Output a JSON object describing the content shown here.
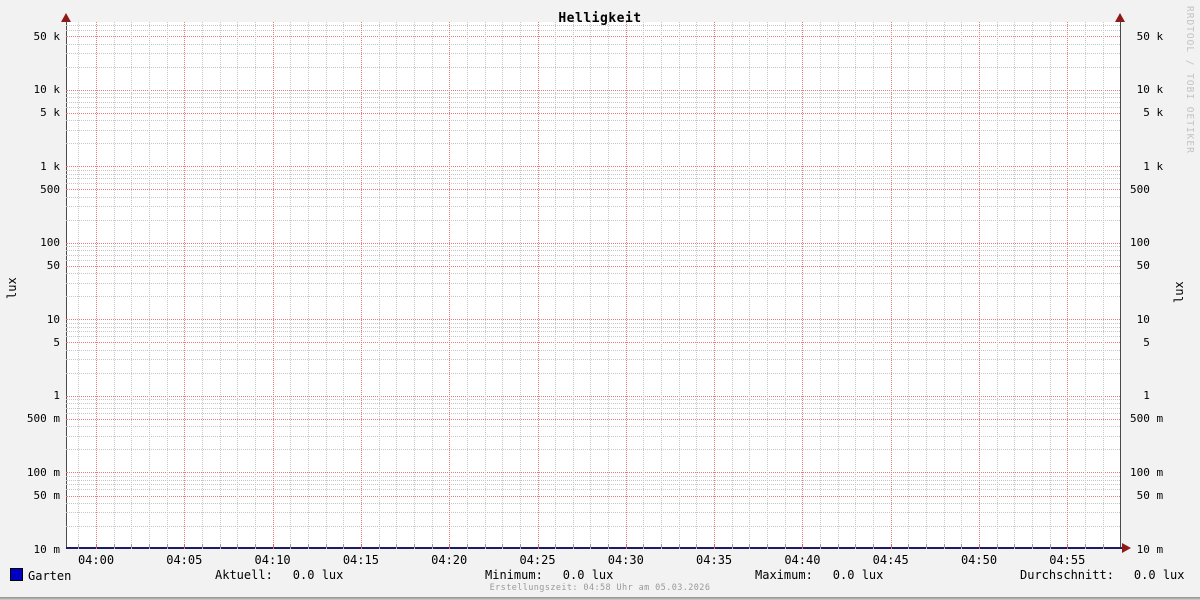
{
  "title": "Helligkeit",
  "watermark": "RRDTOOL / TOBI OETIKER",
  "footer": "Erstellungszeit: 04:58 Uhr am 05.03.2026",
  "colors": {
    "background": "#f2f2f2",
    "canvas": "#ffffff",
    "major_grid": "#e87a7a",
    "minor_grid": "#c6c6c6",
    "axis": "#4a4a4a",
    "arrow": "#8e1a1a",
    "series": "#0000c4",
    "watermark_text": "#c4c4c4",
    "footer_text": "#9a9a9a"
  },
  "legend": {
    "series_name": "Garten",
    "series_color": "#0000c4",
    "stats": [
      {
        "label": "Aktuell:",
        "value": "0.0 lux"
      },
      {
        "label": "Minimum:",
        "value": "0.0 lux"
      },
      {
        "label": "Maximum:",
        "value": "0.0 lux"
      },
      {
        "label": "Durchschnitt:",
        "value": "0.0 lux"
      }
    ]
  },
  "chart_data": {
    "type": "line",
    "title": "Helligkeit",
    "xlabel": "",
    "ylabel": "lux",
    "y_scale": "logarithmic",
    "ylim": [
      0.01,
      77000
    ],
    "grid": true,
    "legend_position": "bottom",
    "x_range": {
      "start": "03:58",
      "end": "04:58"
    },
    "x_major_tick_minutes": 5,
    "x_minor_tick_minutes": 1,
    "x_axis": {
      "labels": [
        "04:00",
        "04:05",
        "04:10",
        "04:15",
        "04:20",
        "04:25",
        "04:30",
        "04:35",
        "04:40",
        "04:45",
        "04:50",
        "04:55"
      ]
    },
    "y_ticks": [
      {
        "value": 50000,
        "label": "50 k",
        "label_right": " 50 k"
      },
      {
        "value": 10000,
        "label": "10 k",
        "label_right": " 10 k"
      },
      {
        "value": 5000,
        "label": "5 k",
        "label_right": "  5 k"
      },
      {
        "value": 1000,
        "label": "1 k",
        "label_right": "  1 k"
      },
      {
        "value": 500,
        "label": "500",
        "label_right": "500"
      },
      {
        "value": 100,
        "label": "100",
        "label_right": "100"
      },
      {
        "value": 50,
        "label": "50",
        "label_right": " 50"
      },
      {
        "value": 10,
        "label": "10",
        "label_right": " 10"
      },
      {
        "value": 5,
        "label": "5",
        "label_right": "  5"
      },
      {
        "value": 1,
        "label": "1",
        "label_right": "  1"
      },
      {
        "value": 0.5,
        "label": "500 m",
        "label_right": "500 m"
      },
      {
        "value": 0.1,
        "label": "100 m",
        "label_right": "100 m"
      },
      {
        "value": 0.05,
        "label": "50 m",
        "label_right": " 50 m"
      },
      {
        "value": 0.01,
        "label": "10 m",
        "label_right": " 10 m"
      }
    ],
    "series": [
      {
        "name": "Garten",
        "color": "#0000c4",
        "unit": "lux",
        "constant_value": 0.0,
        "stats": {
          "aktuell": 0.0,
          "minimum": 0.0,
          "maximum": 0.0,
          "durchschnitt": 0.0
        }
      }
    ]
  }
}
